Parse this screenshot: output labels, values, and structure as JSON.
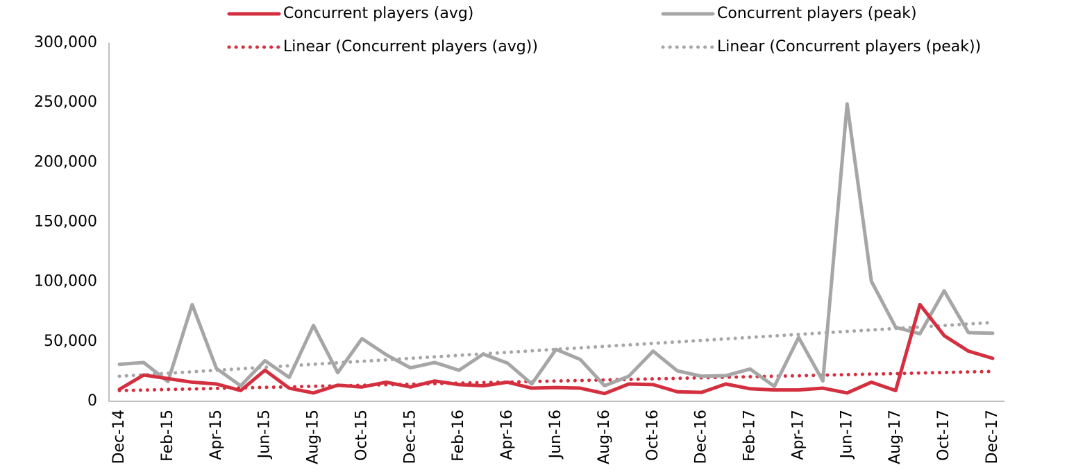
{
  "chart_data": {
    "type": "line",
    "categories": [
      "Dec-14",
      null,
      "Feb-15",
      null,
      "Apr-15",
      null,
      "Jun-15",
      null,
      "Aug-15",
      null,
      "Oct-15",
      null,
      "Dec-15",
      null,
      "Feb-16",
      null,
      "Apr-16",
      null,
      "Jun-16",
      null,
      "Aug-16",
      null,
      "Oct-16",
      null,
      "Dec-16",
      null,
      "Feb-17",
      null,
      "Apr-17",
      null,
      "Jun-17",
      null,
      "Aug-17",
      null,
      "Oct-17",
      null,
      "Dec-17"
    ],
    "series": [
      {
        "name": "Concurrent players (avg)",
        "color": "#d42f3f",
        "style": "solid",
        "values": [
          10000,
          22000,
          19000,
          16000,
          14500,
          9000,
          26000,
          11000,
          7000,
          13500,
          12000,
          16000,
          12000,
          17000,
          14000,
          13000,
          16000,
          11000,
          11500,
          11000,
          6500,
          14500,
          14000,
          8000,
          7500,
          14500,
          10500,
          9500,
          9500,
          11000,
          7000,
          16000,
          9000,
          81000,
          55000,
          42000,
          36000
        ]
      },
      {
        "name": "Concurrent players (peak)",
        "color": "#a6a6a6",
        "style": "solid",
        "values": [
          31000,
          32500,
          16500,
          81000,
          27500,
          13000,
          34000,
          20000,
          63500,
          24000,
          52500,
          39000,
          28000,
          32500,
          26000,
          39500,
          32000,
          14500,
          43500,
          35000,
          13000,
          21000,
          42000,
          25500,
          21000,
          21500,
          27000,
          12500,
          53500,
          17000,
          249000,
          100500,
          62000,
          56500,
          92500,
          57500,
          57000
        ]
      },
      {
        "name": "Linear (Concurrent players (avg))",
        "color": "#d42f3f",
        "style": "dotted",
        "values": [
          9000,
          9400,
          9900,
          10300,
          10800,
          11200,
          11700,
          12100,
          12600,
          13000,
          13400,
          13900,
          14300,
          14800,
          15200,
          15700,
          16100,
          16600,
          17000,
          17400,
          17900,
          18300,
          18800,
          19200,
          19700,
          20100,
          20600,
          21000,
          21400,
          21900,
          22300,
          22800,
          23200,
          23700,
          24100,
          24600,
          25000
        ]
      },
      {
        "name": "Linear (Concurrent players (peak))",
        "color": "#a6a6a6",
        "style": "dotted",
        "values": [
          21000,
          22250,
          23500,
          24750,
          26000,
          27250,
          28500,
          29750,
          31000,
          32250,
          33500,
          34750,
          36000,
          37250,
          38500,
          39750,
          41000,
          42250,
          43500,
          44750,
          46000,
          47250,
          48500,
          49750,
          51000,
          52250,
          53500,
          54750,
          56000,
          57250,
          58500,
          59750,
          61000,
          62250,
          63500,
          64750,
          66000
        ]
      }
    ],
    "ylim": [
      0,
      300000
    ],
    "yticks": [
      0,
      {
        "value": 50000,
        "label": "50,000"
      },
      {
        "value": 100000,
        "label": "100,000"
      },
      {
        "value": 150000,
        "label": "150,000"
      },
      {
        "value": 200000,
        "label": "200,000"
      },
      {
        "value": 250000,
        "label": "250,000"
      },
      {
        "value": 300000,
        "label": "300,000"
      }
    ],
    "grid": false,
    "legend": "top"
  }
}
